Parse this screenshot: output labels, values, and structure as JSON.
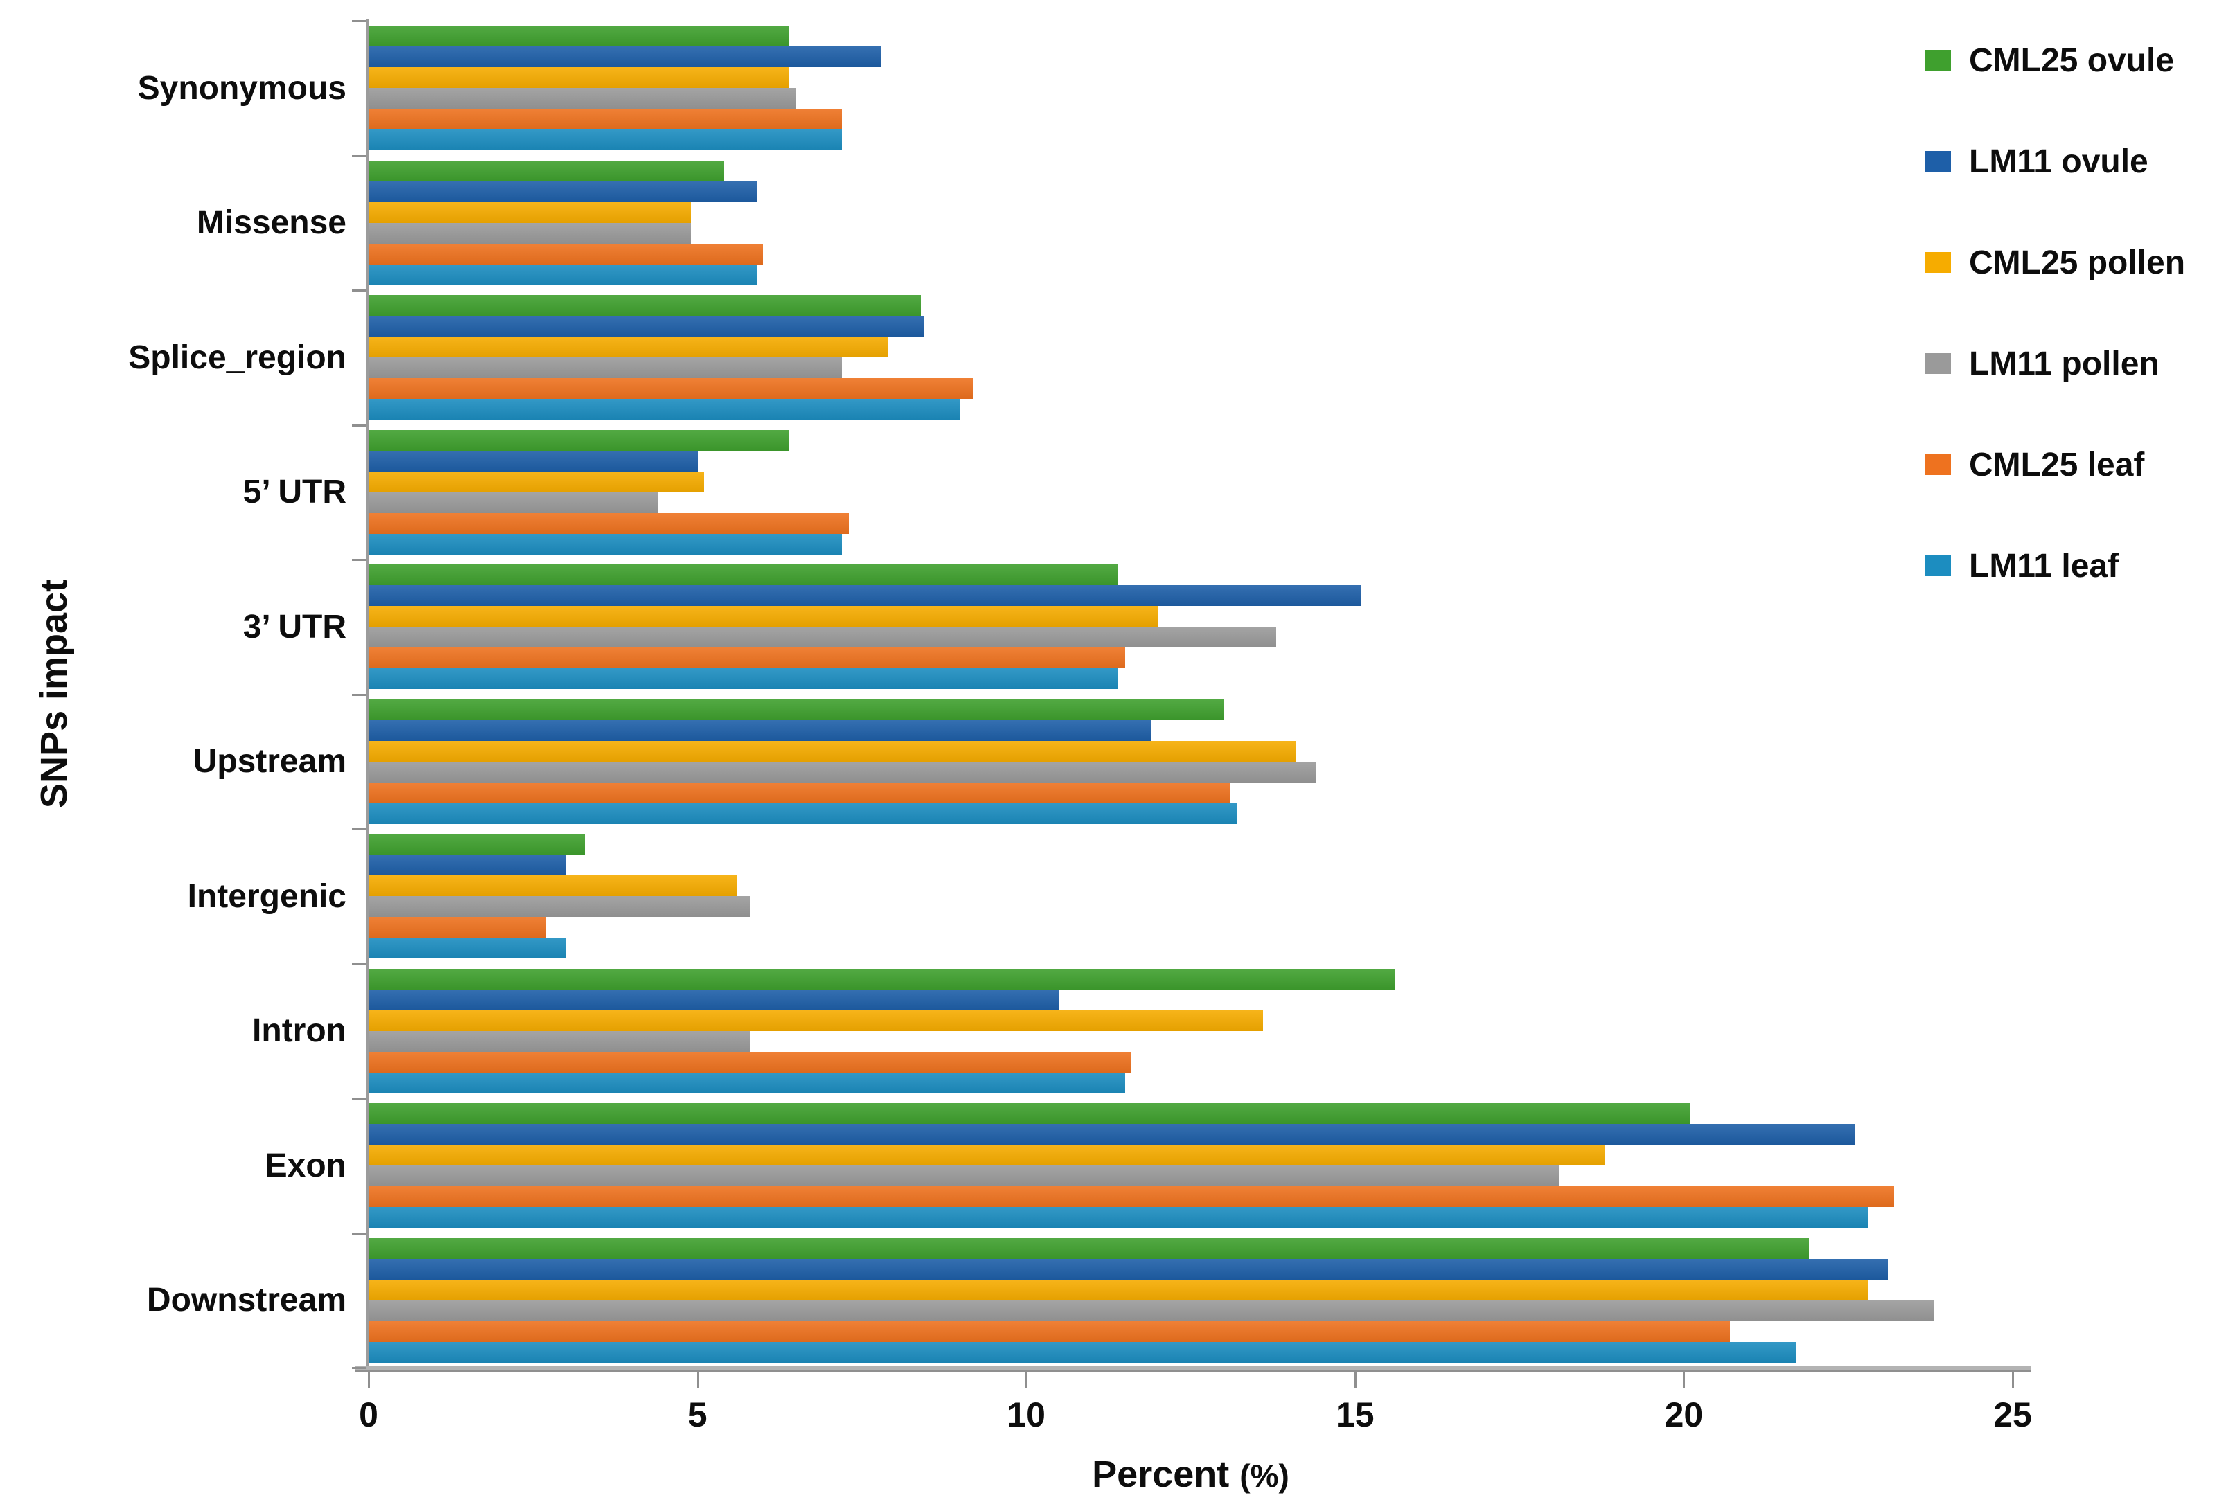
{
  "figure": {
    "background": "#ffffff",
    "axis_line_color": "#9b9b9b",
    "tick_color": "#8f8f8f",
    "text_color": "#0d0d0d"
  },
  "chart_data": {
    "type": "bar",
    "orientation": "horizontal",
    "title": "",
    "xlabel": "Percent",
    "xlabel_suffix": "(%)",
    "ylabel": "SNPs impact",
    "xlim": [
      0,
      25
    ],
    "xticks": [
      0,
      5,
      10,
      15,
      20,
      25
    ],
    "grid": false,
    "legend_position": "right",
    "categories": [
      "Synonymous",
      "Missense",
      "Splice_region",
      "5’ UTR",
      "3’ UTR",
      "Upstream",
      "Intergenic",
      "Intron",
      "Exon",
      "Downstream"
    ],
    "series": [
      {
        "name": "CML25 ovule",
        "color": "#3fa02e",
        "values": [
          6.4,
          5.4,
          8.4,
          6.4,
          11.4,
          13.0,
          3.3,
          15.6,
          20.1,
          21.9
        ]
      },
      {
        "name": "LM11 ovule",
        "color": "#1e5fa8",
        "values": [
          7.8,
          5.9,
          8.45,
          5.0,
          15.1,
          11.9,
          3.0,
          10.5,
          22.6,
          23.1
        ]
      },
      {
        "name": "CML25 pollen",
        "color": "#f6ac00",
        "values": [
          6.4,
          4.9,
          7.9,
          5.1,
          12.0,
          14.1,
          5.6,
          13.6,
          18.8,
          22.8
        ]
      },
      {
        "name": "LM11 pollen",
        "color": "#9a9a9a",
        "values": [
          6.5,
          4.9,
          7.2,
          4.4,
          13.8,
          14.4,
          5.8,
          5.8,
          18.1,
          23.8
        ]
      },
      {
        "name": "CML25 leaf",
        "color": "#ee721f",
        "values": [
          7.2,
          6.0,
          9.2,
          7.3,
          11.5,
          13.1,
          2.7,
          11.6,
          23.2,
          20.7
        ]
      },
      {
        "name": "LM11 leaf",
        "color": "#1c8dc0",
        "values": [
          7.2,
          5.9,
          9.0,
          7.2,
          11.4,
          13.2,
          3.0,
          11.5,
          22.8,
          21.7
        ]
      }
    ]
  }
}
